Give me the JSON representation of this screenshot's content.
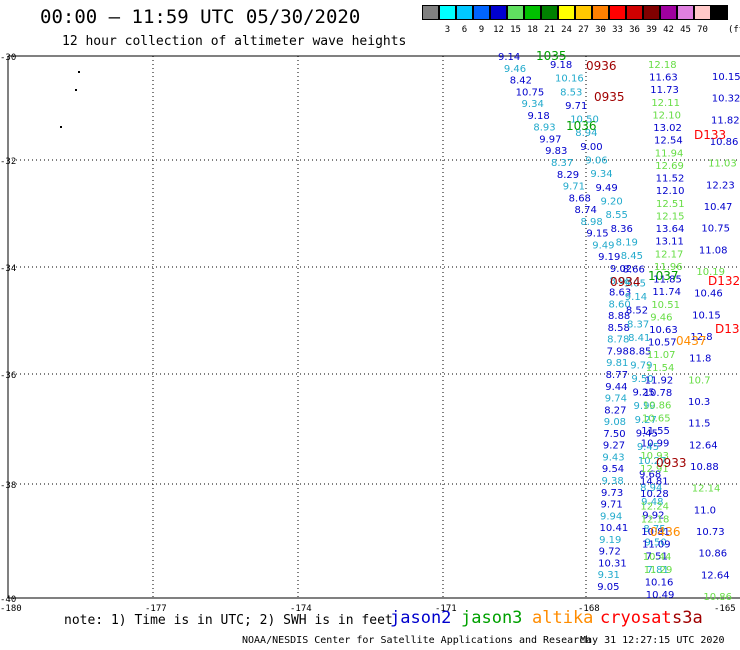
{
  "header": {
    "title": "00:00 – 11:59 UTC 05/30/2020",
    "subtitle": "12 hour collection of altimeter wave heights"
  },
  "legend": {
    "unit": "(ft)",
    "swatches": [
      {
        "label": "",
        "color": "#808080"
      },
      {
        "label": "3",
        "color": "#00ffff"
      },
      {
        "label": "6",
        "color": "#00c8ff"
      },
      {
        "label": "9",
        "color": "#0064ff"
      },
      {
        "label": "12",
        "color": "#0000d0"
      },
      {
        "label": "15",
        "color": "#60e060"
      },
      {
        "label": "18",
        "color": "#00c000"
      },
      {
        "label": "21",
        "color": "#008000"
      },
      {
        "label": "24",
        "color": "#ffff00"
      },
      {
        "label": "27",
        "color": "#ffc800"
      },
      {
        "label": "30",
        "color": "#ff8000"
      },
      {
        "label": "33",
        "color": "#ff0000"
      },
      {
        "label": "36",
        "color": "#d00000"
      },
      {
        "label": "39",
        "color": "#800000"
      },
      {
        "label": "42",
        "color": "#a000a0"
      },
      {
        "label": "45",
        "color": "#e080e0"
      },
      {
        "label": "70",
        "color": "#ffc8c8"
      },
      {
        "label": "",
        "color": "#000000"
      }
    ]
  },
  "axes": {
    "lat_labels": [
      "-30",
      "-32",
      "-34",
      "-36",
      "-38",
      "-40"
    ],
    "lon_labels": [
      "-180",
      "-177",
      "-174",
      "-171",
      "-168",
      "-165"
    ]
  },
  "colors": {
    "jason2": "#0000cc",
    "jason3": "#00a000",
    "altika": "#ff8c00",
    "cryosat": "#ff0000",
    "s3a": "#a00000",
    "light_green": "#66dd44",
    "cyan": "#22aacc",
    "dark_green": "#006600",
    "dark_red": "#880000"
  },
  "tracks": {
    "t1": [
      "9.14",
      "9.46",
      "8.42",
      "10.75",
      "9.34",
      "9.18",
      "8.93",
      "9.97",
      "9.83",
      "8.37",
      "8.29",
      "9.71",
      "8.68",
      "8.74",
      "8.98",
      "9.15",
      "9.49",
      "9.19",
      "9.02",
      "8.98",
      "8.63",
      "8.60",
      "8.88",
      "8.58",
      "8.78",
      "7.98",
      "9.81",
      "8.77",
      "9.44",
      "9.74",
      "8.27",
      "9.08",
      "7.50",
      "9.27",
      "9.43",
      "9.54",
      "9.38",
      "9.73",
      "9.71",
      "9.94",
      "10.41",
      "9.19",
      "9.72",
      "10.31",
      "9.31",
      "9.05"
    ],
    "t2": [
      "9.18",
      "10.16",
      "8.53",
      "9.71",
      "10.50",
      "8.94",
      "9.00",
      "9.06",
      "9.34",
      "9.49",
      "9.20",
      "8.55",
      "8.36",
      "8.19",
      "8.45",
      "8.66",
      "9.05",
      "9.14",
      "8.52",
      "8.37",
      "8.41",
      "8.85",
      "9.79",
      "9.50",
      "9.25",
      "9.99",
      "9.27",
      "9.45",
      "9.45",
      "10.27",
      "9.68",
      "8.94",
      "9.48",
      "9.92",
      "8.75",
      "9.50",
      "7.51",
      "7.81"
    ],
    "t3": [
      "12.18",
      "11.63",
      "11.73",
      "12.11",
      "12.10",
      "13.02",
      "12.54",
      "11.94",
      "12.69",
      "11.52",
      "12.10",
      "12.51",
      "12.15",
      "13.64",
      "13.11",
      "12.17",
      "11.96",
      "11.85",
      "11.74",
      "10.51",
      "9.46",
      "10.63",
      "10.57",
      "11.07",
      "11.54",
      "11.92",
      "10.78",
      "10.86",
      "10.65",
      "11.55",
      "10.99",
      "10.93",
      "12.91",
      "14.81",
      "10.28",
      "12.24",
      "12.18",
      "10.81",
      "11.09",
      "10.44",
      "11.29",
      "10.16",
      "10.49"
    ],
    "t4": [
      "10.15",
      "10.32",
      "11.82",
      "10.86",
      "11.03",
      "12.23",
      "10.47",
      "10.75",
      "11.08",
      "10.19",
      "10.46",
      "10.15",
      "12.8",
      "11.8",
      "10.7",
      "10.3",
      "11.5",
      "12.64",
      "10.88",
      "12.14",
      "11.0",
      "10.73",
      "10.86",
      "12.64",
      "10.86"
    ],
    "time_labels": [
      {
        "text": "1035",
        "kind": "jason3"
      },
      {
        "text": "0936",
        "kind": "s3a"
      },
      {
        "text": "0935",
        "kind": "s3a"
      },
      {
        "text": "1036",
        "kind": "jason3"
      },
      {
        "text": "D133",
        "kind": "cryosat"
      },
      {
        "text": "1037",
        "kind": "jason3"
      },
      {
        "text": "0934",
        "kind": "s3a"
      },
      {
        "text": "D132",
        "kind": "cryosat"
      },
      {
        "text": "D13",
        "kind": "cryosat"
      },
      {
        "text": "0437",
        "kind": "altika"
      },
      {
        "text": "0933",
        "kind": "s3a"
      },
      {
        "text": "0436",
        "kind": "altika"
      }
    ]
  },
  "footer": {
    "note": "note: 1) Time is in UTC; 2) SWH is in feet",
    "satellites": [
      {
        "name": "jason2",
        "kind": "jason2"
      },
      {
        "name": "jason3",
        "kind": "jason3"
      },
      {
        "name": "altika",
        "kind": "altika"
      },
      {
        "name": "cryosat",
        "kind": "cryosat"
      },
      {
        "name": "s3a",
        "kind": "s3a"
      }
    ],
    "credit": "NOAA/NESDIS Center for Satellite Applications and Research",
    "timestamp": "May 31 12:27:15 UTC 2020"
  }
}
